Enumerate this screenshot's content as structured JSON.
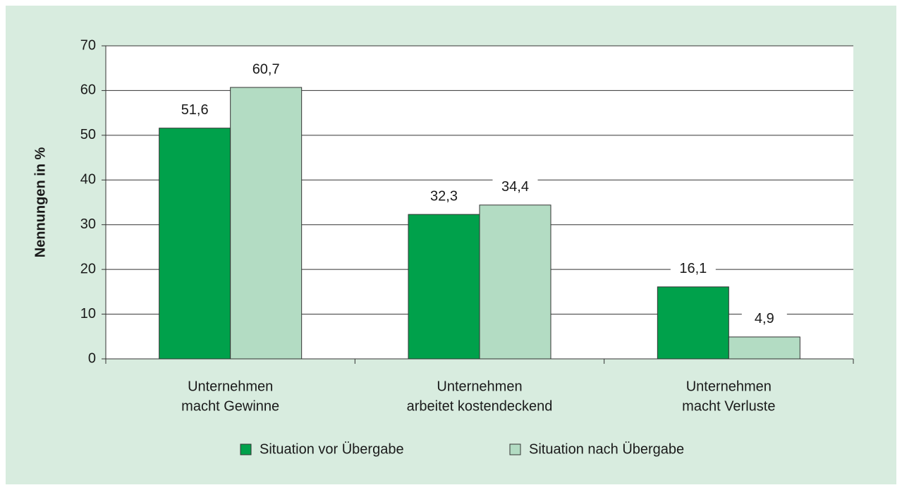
{
  "chart_data": {
    "type": "bar",
    "y_label": "Nennungen in %",
    "categories": [
      [
        "Unternehmen",
        "macht Gewinne"
      ],
      [
        "Unternehmen",
        "arbeitet kostendeckend"
      ],
      [
        "Unternehmen",
        "macht Verluste"
      ]
    ],
    "series": [
      {
        "name": "Situation vor Übergabe",
        "color": "#00a14b",
        "values": [
          51.6,
          32.3,
          16.1
        ],
        "value_labels": [
          "51,6",
          "32,3",
          "16,1"
        ]
      },
      {
        "name": "Situation nach Übergabe",
        "color": "#b3dcc3",
        "values": [
          60.7,
          34.4,
          4.9
        ],
        "value_labels": [
          "60,7",
          "34,4",
          "4,9"
        ]
      }
    ],
    "ylim": [
      0,
      70
    ],
    "yticks": [
      0,
      10,
      20,
      30,
      40,
      50,
      60,
      70
    ],
    "grid": true
  }
}
